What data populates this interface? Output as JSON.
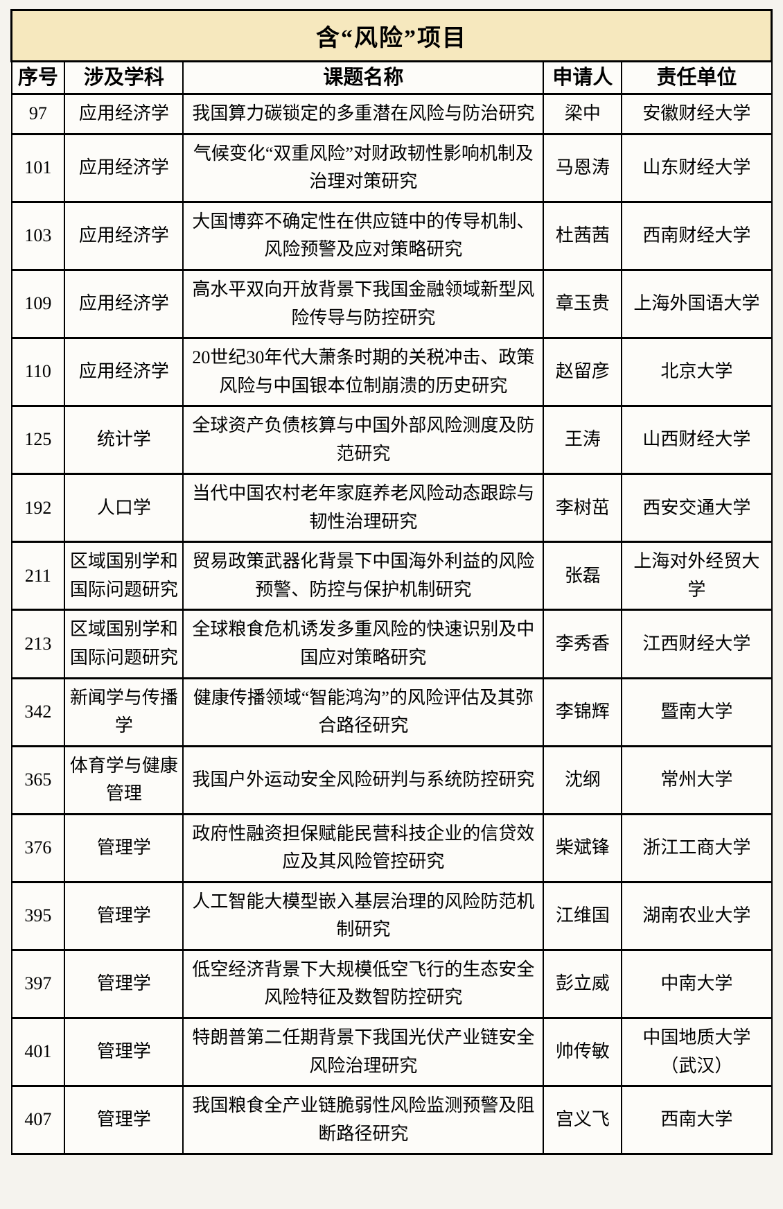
{
  "title": "含“风险”项目",
  "columns": [
    "序号",
    "涉及学科",
    "课题名称",
    "申请人",
    "责任单位"
  ],
  "rows": [
    {
      "no": "97",
      "discipline": "应用经济学",
      "project": "我国算力碳锁定的多重潜在风险与防治研究",
      "applicant": "梁中",
      "institution": "安徽财经大学"
    },
    {
      "no": "101",
      "discipline": "应用经济学",
      "project": "气候变化“双重风险”对财政韧性影响机制及治理对策研究",
      "applicant": "马恩涛",
      "institution": "山东财经大学"
    },
    {
      "no": "103",
      "discipline": "应用经济学",
      "project": "大国博弈不确定性在供应链中的传导机制、风险预警及应对策略研究",
      "applicant": "杜茜茜",
      "institution": "西南财经大学"
    },
    {
      "no": "109",
      "discipline": "应用经济学",
      "project": "高水平双向开放背景下我国金融领域新型风险传导与防控研究",
      "applicant": "章玉贵",
      "institution": "上海外国语大学"
    },
    {
      "no": "110",
      "discipline": "应用经济学",
      "project": "20世纪30年代大萧条时期的关税冲击、政策风险与中国银本位制崩溃的历史研究",
      "applicant": "赵留彦",
      "institution": "北京大学"
    },
    {
      "no": "125",
      "discipline": "统计学",
      "project": "全球资产负债核算与中国外部风险测度及防范研究",
      "applicant": "王涛",
      "institution": "山西财经大学"
    },
    {
      "no": "192",
      "discipline": "人口学",
      "project": "当代中国农村老年家庭养老风险动态跟踪与韧性治理研究",
      "applicant": "李树茁",
      "institution": "西安交通大学"
    },
    {
      "no": "211",
      "discipline": "区域国别学和国际问题研究",
      "project": "贸易政策武器化背景下中国海外利益的风险预警、防控与保护机制研究",
      "applicant": "张磊",
      "institution": "上海对外经贸大学"
    },
    {
      "no": "213",
      "discipline": "区域国别学和国际问题研究",
      "project": "全球粮食危机诱发多重风险的快速识别及中国应对策略研究",
      "applicant": "李秀香",
      "institution": "江西财经大学"
    },
    {
      "no": "342",
      "discipline": "新闻学与传播学",
      "project": "健康传播领域“智能鸿沟”的风险评估及其弥合路径研究",
      "applicant": "李锦辉",
      "institution": "暨南大学"
    },
    {
      "no": "365",
      "discipline": "体育学与健康管理",
      "project": "我国户外运动安全风险研判与系统防控研究",
      "applicant": "沈纲",
      "institution": "常州大学"
    },
    {
      "no": "376",
      "discipline": "管理学",
      "project": "政府性融资担保赋能民营科技企业的信贷效应及其风险管控研究",
      "applicant": "柴斌锋",
      "institution": "浙江工商大学"
    },
    {
      "no": "395",
      "discipline": "管理学",
      "project": "人工智能大模型嵌入基层治理的风险防范机制研究",
      "applicant": "江维国",
      "institution": "湖南农业大学"
    },
    {
      "no": "397",
      "discipline": "管理学",
      "project": "低空经济背景下大规模低空飞行的生态安全风险特征及数智防控研究",
      "applicant": "彭立威",
      "institution": "中南大学"
    },
    {
      "no": "401",
      "discipline": "管理学",
      "project": "特朗普第二任期背景下我国光伏产业链安全风险治理研究",
      "applicant": "帅传敏",
      "institution": "中国地质大学（武汉）"
    },
    {
      "no": "407",
      "discipline": "管理学",
      "project": "我国粮食全产业链脆弱性风险监测预警及阻断路径研究",
      "applicant": "宫义飞",
      "institution": "西南大学"
    }
  ],
  "colors": {
    "title_bg": "#f6e8be",
    "border": "#000000",
    "cell_bg": "#fdfcf9",
    "page_bg": "#f5f3ee"
  }
}
